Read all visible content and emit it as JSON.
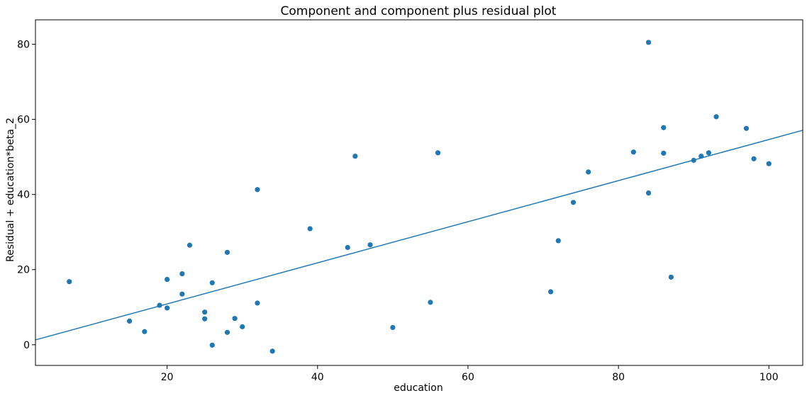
{
  "chart_data": {
    "type": "scatter",
    "title": "Component and component plus residual plot",
    "xlabel": "education",
    "ylabel": "Residual + education*beta_2",
    "xlim": [
      2.5,
      104.5
    ],
    "ylim": [
      -5.5,
      86.5
    ],
    "x_ticks": [
      20,
      40,
      60,
      80,
      100
    ],
    "y_ticks": [
      0,
      20,
      40,
      60,
      80
    ],
    "grid": false,
    "legend": "none",
    "points": {
      "x": [
        7,
        15,
        17,
        19,
        20,
        20,
        22,
        22,
        23,
        25,
        25,
        26,
        26,
        28,
        28,
        29,
        30,
        32,
        32,
        34,
        39,
        44,
        45,
        47,
        50,
        55,
        56,
        71,
        72,
        74,
        76,
        82,
        84,
        84,
        86,
        86,
        87,
        90,
        91,
        92,
        93,
        97,
        98,
        100
      ],
      "y": [
        16.8,
        6.3,
        3.5,
        10.5,
        17.4,
        9.8,
        18.9,
        13.5,
        26.5,
        8.7,
        6.9,
        16.5,
        -0.1,
        24.6,
        3.3,
        7.0,
        4.8,
        41.3,
        11.1,
        -1.7,
        30.9,
        25.9,
        50.2,
        26.6,
        4.6,
        11.3,
        51.1,
        14.1,
        27.7,
        37.9,
        46.0,
        51.3,
        80.5,
        40.4,
        57.8,
        51.0,
        18.0,
        49.1,
        50.2,
        51.1,
        60.7,
        57.6,
        49.5,
        48.2
      ]
    },
    "line": {
      "x": [
        2.5,
        104.5
      ],
      "y": [
        1.3,
        57.1
      ]
    },
    "colors": {
      "series": "#1f77b4",
      "axes": "#000000"
    }
  }
}
